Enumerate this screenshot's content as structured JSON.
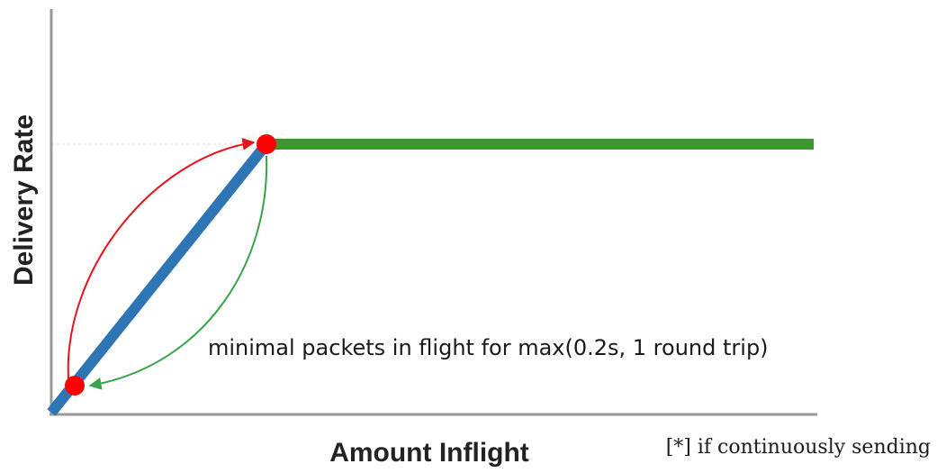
{
  "axes": {
    "y_label": "Delivery Rate",
    "x_label": "Amount Inflight"
  },
  "annotation": "minimal packets in flight for max(0.2s, 1 round trip)",
  "footnote": "[*] if continuously sending",
  "colors": {
    "axis": "#999999",
    "ramp_line": "#2e75b6",
    "plateau_line": "#3d9630",
    "forward_arrow": "#e8131b",
    "return_arrow": "#37a34a",
    "points": "#ff0000",
    "guide_line": "#cccccc"
  }
}
